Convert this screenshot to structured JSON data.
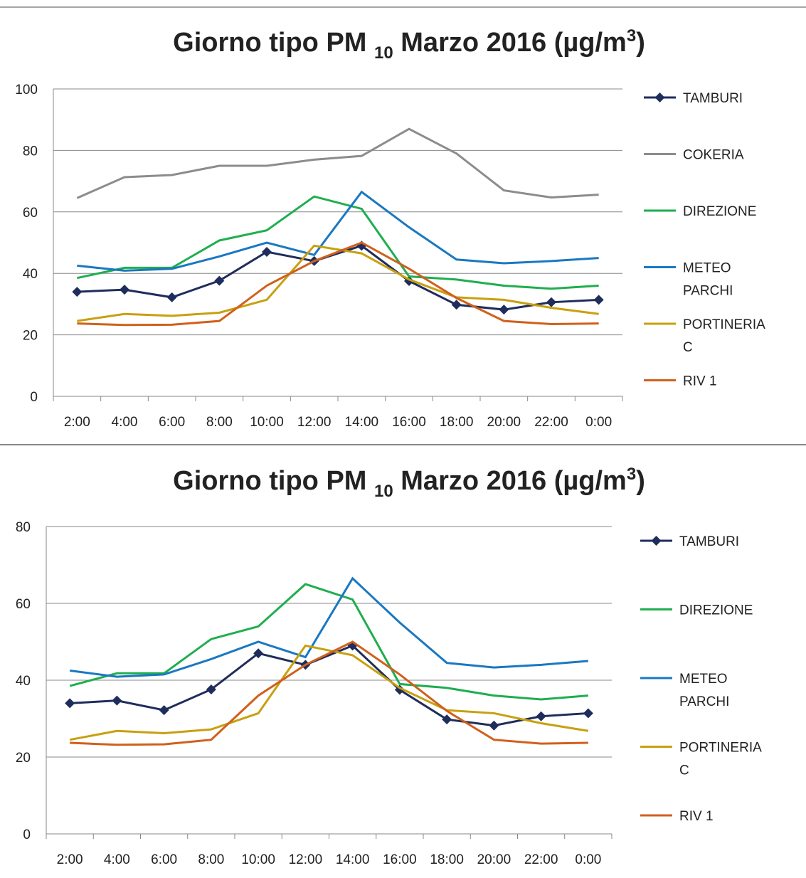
{
  "chart_data": [
    {
      "type": "line",
      "title": [
        "Giorno tipo PM ",
        "10",
        " Marzo 2016 (µg/m",
        "3",
        ")"
      ],
      "categories": [
        "2:00",
        "4:00",
        "6:00",
        "8:00",
        "10:00",
        "12:00",
        "14:00",
        "16:00",
        "18:00",
        "20:00",
        "22:00",
        "0:00"
      ],
      "ylim": [
        0,
        100
      ],
      "yticks": [
        0,
        20,
        40,
        60,
        80,
        100
      ],
      "grid": true,
      "legend": "right",
      "series": [
        {
          "name": "TAMBURI",
          "color": "#1f2d5c",
          "marker": "diamond",
          "values": [
            34,
            34.7,
            32.2,
            37.6,
            47,
            44,
            49,
            37.5,
            29.8,
            28.2,
            30.6,
            31.4
          ]
        },
        {
          "name": "COKERIA",
          "color": "#8c8c8c",
          "values": [
            64.5,
            71.3,
            72,
            75,
            75,
            77,
            78.2,
            87,
            79,
            67,
            64.7,
            65.6
          ]
        },
        {
          "name": "DIREZIONE",
          "color": "#1fae4f",
          "values": [
            38.5,
            41.8,
            41.8,
            50.7,
            54,
            65,
            61,
            39,
            38,
            36,
            35,
            36
          ]
        },
        {
          "name": "METEO PARCHI",
          "color": "#1a78c2",
          "values": [
            42.5,
            40.9,
            41.5,
            45.5,
            50,
            46,
            66.5,
            55,
            44.5,
            43.3,
            44,
            45
          ]
        },
        {
          "name": "PORTINERIA C",
          "color": "#c8a00f",
          "values": [
            24.5,
            26.8,
            26.2,
            27.2,
            31.4,
            49,
            46.5,
            38,
            32.2,
            31.4,
            28.8,
            26.8
          ]
        },
        {
          "name": "RIV 1",
          "color": "#d0601c",
          "values": [
            23.7,
            23.2,
            23.3,
            24.5,
            36,
            44,
            50,
            41.5,
            32,
            24.5,
            23.5,
            23.7
          ]
        }
      ]
    },
    {
      "type": "line",
      "title": [
        "Giorno tipo PM ",
        "10",
        " Marzo 2016 (µg/m",
        "3",
        ")"
      ],
      "categories": [
        "2:00",
        "4:00",
        "6:00",
        "8:00",
        "10:00",
        "12:00",
        "14:00",
        "16:00",
        "18:00",
        "20:00",
        "22:00",
        "0:00"
      ],
      "ylim": [
        0,
        80
      ],
      "yticks": [
        0,
        20,
        40,
        60,
        80
      ],
      "grid": true,
      "legend": "right",
      "series": [
        {
          "name": "TAMBURI",
          "color": "#1f2d5c",
          "marker": "diamond",
          "values": [
            34,
            34.7,
            32.2,
            37.6,
            47,
            44,
            49,
            37.5,
            29.8,
            28.2,
            30.6,
            31.4
          ]
        },
        {
          "name": "DIREZIONE",
          "color": "#1fae4f",
          "values": [
            38.5,
            41.8,
            41.8,
            50.7,
            54,
            65,
            61,
            39,
            38,
            36,
            35,
            36
          ]
        },
        {
          "name": "METEO PARCHI",
          "color": "#1a78c2",
          "values": [
            42.5,
            40.9,
            41.5,
            45.5,
            50,
            46,
            66.5,
            55,
            44.5,
            43.3,
            44,
            45
          ]
        },
        {
          "name": "PORTINERIA C",
          "color": "#c8a00f",
          "values": [
            24.5,
            26.8,
            26.2,
            27.2,
            31.4,
            49,
            46.5,
            38,
            32.2,
            31.4,
            28.8,
            26.8
          ]
        },
        {
          "name": "RIV 1",
          "color": "#d0601c",
          "values": [
            23.7,
            23.2,
            23.3,
            24.5,
            36,
            44,
            50,
            41.5,
            32,
            24.5,
            23.5,
            23.7
          ]
        }
      ]
    }
  ]
}
